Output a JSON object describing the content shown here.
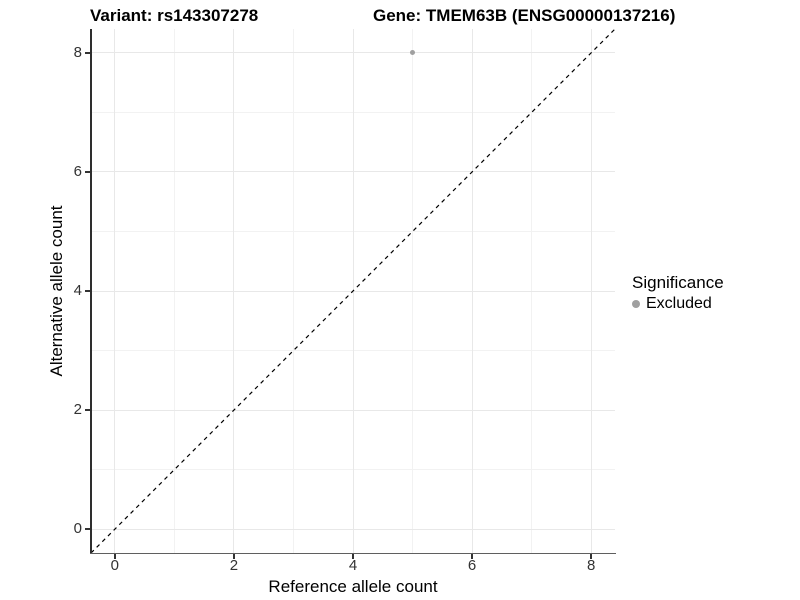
{
  "titles": {
    "variant": "Variant: rs143307278",
    "gene": "Gene: TMEM63B (ENSG00000137216)"
  },
  "legend": {
    "title": "Significance",
    "items": [
      {
        "label": "Excluded",
        "color": "#a0a0a0"
      }
    ]
  },
  "colors": {
    "point": "#a0a0a0",
    "grid_major": "#e8e8e8",
    "grid_minor": "#f2f2f2",
    "axis_line": "#333333",
    "reference_line": "#000000",
    "tick_label": "#333333"
  },
  "chart_data": {
    "type": "scatter",
    "title": "Variant: rs143307278   Gene: TMEM63B (ENSG00000137216)",
    "xlabel": "Reference allele count",
    "ylabel": "Alternative allele count",
    "xlim": [
      -0.4,
      8.4
    ],
    "ylim": [
      -0.4,
      8.4
    ],
    "x_ticks": [
      0,
      2,
      4,
      6,
      8
    ],
    "y_ticks": [
      0,
      2,
      4,
      6,
      8
    ],
    "x_minor_ticks": [
      1,
      3,
      5,
      7
    ],
    "y_minor_ticks": [
      1,
      3,
      5,
      7
    ],
    "x_tick_labels": [
      "0",
      "2",
      "4",
      "6",
      "8"
    ],
    "y_tick_labels": [
      "0",
      "2",
      "4",
      "6",
      "8"
    ],
    "grid": true,
    "legend_position": "right",
    "series": [
      {
        "name": "Excluded",
        "color": "#a0a0a0",
        "points": [
          {
            "x": 5,
            "y": 8
          }
        ]
      }
    ],
    "reference_line": {
      "type": "identity",
      "equation": "y = x",
      "style": "dashed",
      "color": "#000000"
    }
  }
}
